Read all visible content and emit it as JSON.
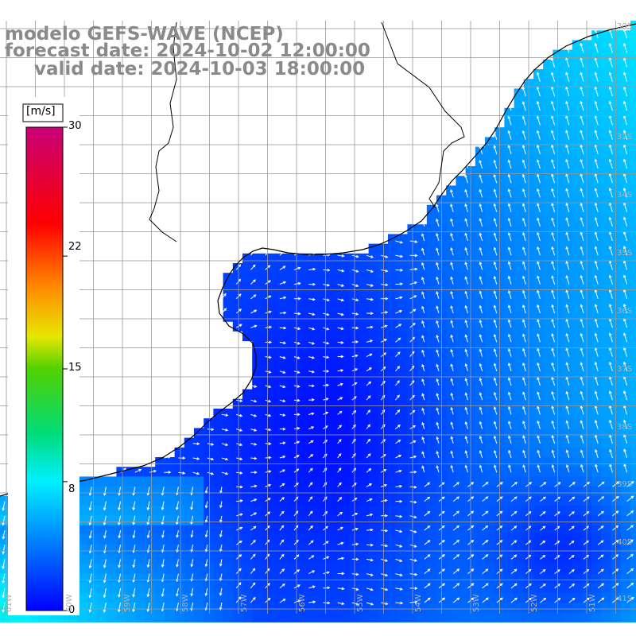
{
  "title": {
    "line1": "modelo GEFS-WAVE (NCEP)",
    "line2": "forecast date: 2024-10-02 12:00:00",
    "line3": "valid date: 2024-10-03 18:00:00"
  },
  "colorbar": {
    "unit": "[m/s]",
    "ticks": [
      "30",
      "22",
      "15",
      "8",
      "0"
    ],
    "tick_values": [
      30,
      22,
      15,
      8,
      0
    ],
    "min": 0,
    "max": 30
  },
  "lat_labels": [
    "30S",
    "32S",
    "34S",
    "35S",
    "36S",
    "37S",
    "38S",
    "39S",
    "40S",
    "41S"
  ],
  "lon_labels": [
    "61W",
    "60W",
    "59W",
    "58W",
    "57W",
    "56W",
    "55W",
    "54W",
    "53W",
    "52W",
    "51W"
  ],
  "colors": {
    "land": "#ffffff",
    "grid": "#9a9a9a",
    "coast": "#000000",
    "arrow": "#ffffff",
    "title": "#8a8a8a"
  }
}
